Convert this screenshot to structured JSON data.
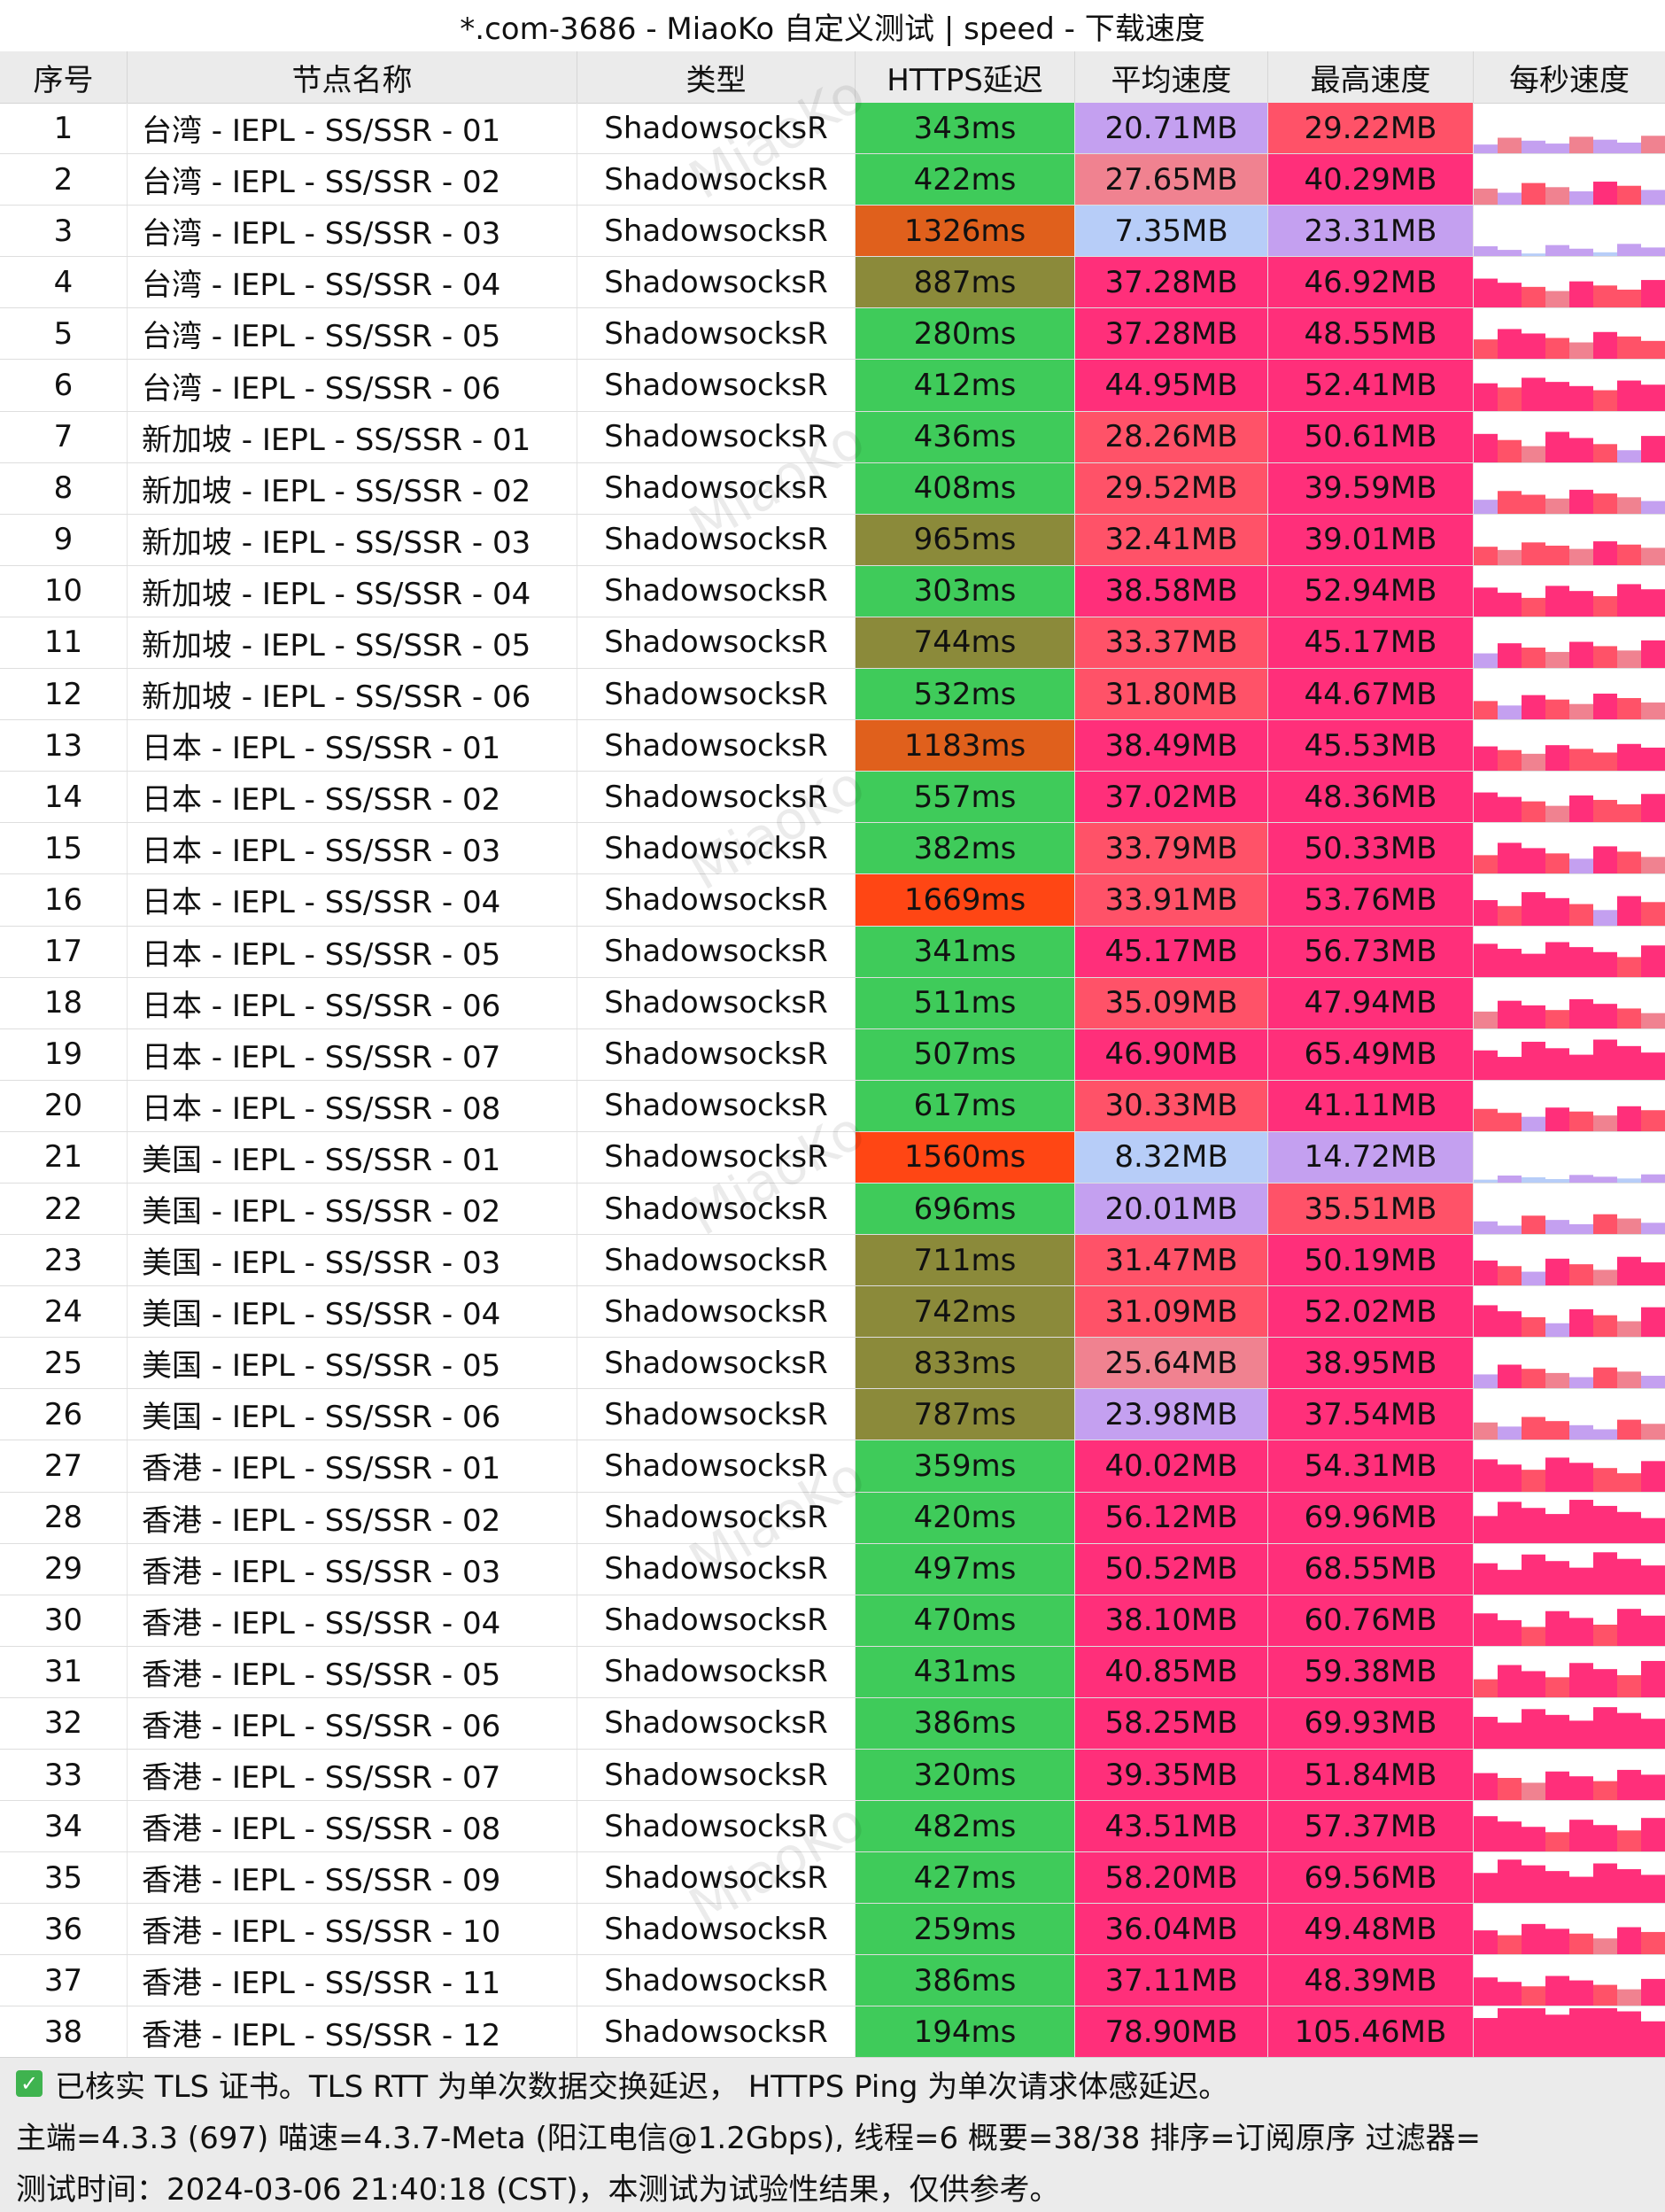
{
  "window": {
    "title": "*.com-3686 - MiaoKo 自定义测试 | speed - 下载速度"
  },
  "watermark": "MiaoKo",
  "columns": [
    "序号",
    "节点名称",
    "类型",
    "HTTPS延迟",
    "平均速度",
    "最高速度",
    "每秒速度"
  ],
  "colors": {
    "latency_green": "#3fcb5a",
    "latency_olive": "#8b8a3a",
    "latency_orange": "#e0601c",
    "latency_red": "#ff4614",
    "speed_hot_pink": "#ff2f7a",
    "speed_red_pink": "#ff5268",
    "speed_pink": "#f08290",
    "speed_lavender": "#c4a0f0",
    "speed_light_blue": "#b7cdf8"
  },
  "rows": [
    {
      "idx": "1",
      "name": "台湾 - IEPL - SS/SSR - 01",
      "type": "ShadowsocksR",
      "latency": "343ms",
      "latency_ms": 343,
      "avg": "20.71MB",
      "avg_mb": 20.71,
      "max": "29.22MB",
      "max_mb": 29.22
    },
    {
      "idx": "2",
      "name": "台湾 - IEPL - SS/SSR - 02",
      "type": "ShadowsocksR",
      "latency": "422ms",
      "latency_ms": 422,
      "avg": "27.65MB",
      "avg_mb": 27.65,
      "max": "40.29MB",
      "max_mb": 40.29
    },
    {
      "idx": "3",
      "name": "台湾 - IEPL - SS/SSR - 03",
      "type": "ShadowsocksR",
      "latency": "1326ms",
      "latency_ms": 1326,
      "avg": "7.35MB",
      "avg_mb": 7.35,
      "max": "23.31MB",
      "max_mb": 23.31
    },
    {
      "idx": "4",
      "name": "台湾 - IEPL - SS/SSR - 04",
      "type": "ShadowsocksR",
      "latency": "887ms",
      "latency_ms": 887,
      "avg": "37.28MB",
      "avg_mb": 37.28,
      "max": "46.92MB",
      "max_mb": 46.92
    },
    {
      "idx": "5",
      "name": "台湾 - IEPL - SS/SSR - 05",
      "type": "ShadowsocksR",
      "latency": "280ms",
      "latency_ms": 280,
      "avg": "37.28MB",
      "avg_mb": 37.28,
      "max": "48.55MB",
      "max_mb": 48.55
    },
    {
      "idx": "6",
      "name": "台湾 - IEPL - SS/SSR - 06",
      "type": "ShadowsocksR",
      "latency": "412ms",
      "latency_ms": 412,
      "avg": "44.95MB",
      "avg_mb": 44.95,
      "max": "52.41MB",
      "max_mb": 52.41
    },
    {
      "idx": "7",
      "name": "新加坡 - IEPL - SS/SSR - 01",
      "type": "ShadowsocksR",
      "latency": "436ms",
      "latency_ms": 436,
      "avg": "28.26MB",
      "avg_mb": 28.26,
      "max": "50.61MB",
      "max_mb": 50.61
    },
    {
      "idx": "8",
      "name": "新加坡 - IEPL - SS/SSR - 02",
      "type": "ShadowsocksR",
      "latency": "408ms",
      "latency_ms": 408,
      "avg": "29.52MB",
      "avg_mb": 29.52,
      "max": "39.59MB",
      "max_mb": 39.59
    },
    {
      "idx": "9",
      "name": "新加坡 - IEPL - SS/SSR - 03",
      "type": "ShadowsocksR",
      "latency": "965ms",
      "latency_ms": 965,
      "avg": "32.41MB",
      "avg_mb": 32.41,
      "max": "39.01MB",
      "max_mb": 39.01
    },
    {
      "idx": "10",
      "name": "新加坡 - IEPL - SS/SSR - 04",
      "type": "ShadowsocksR",
      "latency": "303ms",
      "latency_ms": 303,
      "avg": "38.58MB",
      "avg_mb": 38.58,
      "max": "52.94MB",
      "max_mb": 52.94
    },
    {
      "idx": "11",
      "name": "新加坡 - IEPL - SS/SSR - 05",
      "type": "ShadowsocksR",
      "latency": "744ms",
      "latency_ms": 744,
      "avg": "33.37MB",
      "avg_mb": 33.37,
      "max": "45.17MB",
      "max_mb": 45.17
    },
    {
      "idx": "12",
      "name": "新加坡 - IEPL - SS/SSR - 06",
      "type": "ShadowsocksR",
      "latency": "532ms",
      "latency_ms": 532,
      "avg": "31.80MB",
      "avg_mb": 31.8,
      "max": "44.67MB",
      "max_mb": 44.67
    },
    {
      "idx": "13",
      "name": "日本 - IEPL - SS/SSR - 01",
      "type": "ShadowsocksR",
      "latency": "1183ms",
      "latency_ms": 1183,
      "avg": "38.49MB",
      "avg_mb": 38.49,
      "max": "45.53MB",
      "max_mb": 45.53
    },
    {
      "idx": "14",
      "name": "日本 - IEPL - SS/SSR - 02",
      "type": "ShadowsocksR",
      "latency": "557ms",
      "latency_ms": 557,
      "avg": "37.02MB",
      "avg_mb": 37.02,
      "max": "48.36MB",
      "max_mb": 48.36
    },
    {
      "idx": "15",
      "name": "日本 - IEPL - SS/SSR - 03",
      "type": "ShadowsocksR",
      "latency": "382ms",
      "latency_ms": 382,
      "avg": "33.79MB",
      "avg_mb": 33.79,
      "max": "50.33MB",
      "max_mb": 50.33
    },
    {
      "idx": "16",
      "name": "日本 - IEPL - SS/SSR - 04",
      "type": "ShadowsocksR",
      "latency": "1669ms",
      "latency_ms": 1669,
      "avg": "33.91MB",
      "avg_mb": 33.91,
      "max": "53.76MB",
      "max_mb": 53.76
    },
    {
      "idx": "17",
      "name": "日本 - IEPL - SS/SSR - 05",
      "type": "ShadowsocksR",
      "latency": "341ms",
      "latency_ms": 341,
      "avg": "45.17MB",
      "avg_mb": 45.17,
      "max": "56.73MB",
      "max_mb": 56.73
    },
    {
      "idx": "18",
      "name": "日本 - IEPL - SS/SSR - 06",
      "type": "ShadowsocksR",
      "latency": "511ms",
      "latency_ms": 511,
      "avg": "35.09MB",
      "avg_mb": 35.09,
      "max": "47.94MB",
      "max_mb": 47.94
    },
    {
      "idx": "19",
      "name": "日本 - IEPL - SS/SSR - 07",
      "type": "ShadowsocksR",
      "latency": "507ms",
      "latency_ms": 507,
      "avg": "46.90MB",
      "avg_mb": 46.9,
      "max": "65.49MB",
      "max_mb": 65.49
    },
    {
      "idx": "20",
      "name": "日本 - IEPL - SS/SSR - 08",
      "type": "ShadowsocksR",
      "latency": "617ms",
      "latency_ms": 617,
      "avg": "30.33MB",
      "avg_mb": 30.33,
      "max": "41.11MB",
      "max_mb": 41.11
    },
    {
      "idx": "21",
      "name": "美国 - IEPL - SS/SSR - 01",
      "type": "ShadowsocksR",
      "latency": "1560ms",
      "latency_ms": 1560,
      "avg": "8.32MB",
      "avg_mb": 8.32,
      "max": "14.72MB",
      "max_mb": 14.72
    },
    {
      "idx": "22",
      "name": "美国 - IEPL - SS/SSR - 02",
      "type": "ShadowsocksR",
      "latency": "696ms",
      "latency_ms": 696,
      "avg": "20.01MB",
      "avg_mb": 20.01,
      "max": "35.51MB",
      "max_mb": 35.51
    },
    {
      "idx": "23",
      "name": "美国 - IEPL - SS/SSR - 03",
      "type": "ShadowsocksR",
      "latency": "711ms",
      "latency_ms": 711,
      "avg": "31.47MB",
      "avg_mb": 31.47,
      "max": "50.19MB",
      "max_mb": 50.19
    },
    {
      "idx": "24",
      "name": "美国 - IEPL - SS/SSR - 04",
      "type": "ShadowsocksR",
      "latency": "742ms",
      "latency_ms": 742,
      "avg": "31.09MB",
      "avg_mb": 31.09,
      "max": "52.02MB",
      "max_mb": 52.02
    },
    {
      "idx": "25",
      "name": "美国 - IEPL - SS/SSR - 05",
      "type": "ShadowsocksR",
      "latency": "833ms",
      "latency_ms": 833,
      "avg": "25.64MB",
      "avg_mb": 25.64,
      "max": "38.95MB",
      "max_mb": 38.95
    },
    {
      "idx": "26",
      "name": "美国 - IEPL - SS/SSR - 06",
      "type": "ShadowsocksR",
      "latency": "787ms",
      "latency_ms": 787,
      "avg": "23.98MB",
      "avg_mb": 23.98,
      "max": "37.54MB",
      "max_mb": 37.54
    },
    {
      "idx": "27",
      "name": "香港 - IEPL - SS/SSR - 01",
      "type": "ShadowsocksR",
      "latency": "359ms",
      "latency_ms": 359,
      "avg": "40.02MB",
      "avg_mb": 40.02,
      "max": "54.31MB",
      "max_mb": 54.31
    },
    {
      "idx": "28",
      "name": "香港 - IEPL - SS/SSR - 02",
      "type": "ShadowsocksR",
      "latency": "420ms",
      "latency_ms": 420,
      "avg": "56.12MB",
      "avg_mb": 56.12,
      "max": "69.96MB",
      "max_mb": 69.96
    },
    {
      "idx": "29",
      "name": "香港 - IEPL - SS/SSR - 03",
      "type": "ShadowsocksR",
      "latency": "497ms",
      "latency_ms": 497,
      "avg": "50.52MB",
      "avg_mb": 50.52,
      "max": "68.55MB",
      "max_mb": 68.55
    },
    {
      "idx": "30",
      "name": "香港 - IEPL - SS/SSR - 04",
      "type": "ShadowsocksR",
      "latency": "470ms",
      "latency_ms": 470,
      "avg": "38.10MB",
      "avg_mb": 38.1,
      "max": "60.76MB",
      "max_mb": 60.76
    },
    {
      "idx": "31",
      "name": "香港 - IEPL - SS/SSR - 05",
      "type": "ShadowsocksR",
      "latency": "431ms",
      "latency_ms": 431,
      "avg": "40.85MB",
      "avg_mb": 40.85,
      "max": "59.38MB",
      "max_mb": 59.38
    },
    {
      "idx": "32",
      "name": "香港 - IEPL - SS/SSR - 06",
      "type": "ShadowsocksR",
      "latency": "386ms",
      "latency_ms": 386,
      "avg": "58.25MB",
      "avg_mb": 58.25,
      "max": "69.93MB",
      "max_mb": 69.93
    },
    {
      "idx": "33",
      "name": "香港 - IEPL - SS/SSR - 07",
      "type": "ShadowsocksR",
      "latency": "320ms",
      "latency_ms": 320,
      "avg": "39.35MB",
      "avg_mb": 39.35,
      "max": "51.84MB",
      "max_mb": 51.84
    },
    {
      "idx": "34",
      "name": "香港 - IEPL - SS/SSR - 08",
      "type": "ShadowsocksR",
      "latency": "482ms",
      "latency_ms": 482,
      "avg": "43.51MB",
      "avg_mb": 43.51,
      "max": "57.37MB",
      "max_mb": 57.37
    },
    {
      "idx": "35",
      "name": "香港 - IEPL - SS/SSR - 09",
      "type": "ShadowsocksR",
      "latency": "427ms",
      "latency_ms": 427,
      "avg": "58.20MB",
      "avg_mb": 58.2,
      "max": "69.56MB",
      "max_mb": 69.56
    },
    {
      "idx": "36",
      "name": "香港 - IEPL - SS/SSR - 10",
      "type": "ShadowsocksR",
      "latency": "259ms",
      "latency_ms": 259,
      "avg": "36.04MB",
      "avg_mb": 36.04,
      "max": "49.48MB",
      "max_mb": 49.48
    },
    {
      "idx": "37",
      "name": "香港 - IEPL - SS/SSR - 11",
      "type": "ShadowsocksR",
      "latency": "386ms",
      "latency_ms": 386,
      "avg": "37.11MB",
      "avg_mb": 37.11,
      "max": "48.39MB",
      "max_mb": 48.39
    },
    {
      "idx": "38",
      "name": "香港 - IEPL - SS/SSR - 12",
      "type": "ShadowsocksR",
      "latency": "194ms",
      "latency_ms": 194,
      "avg": "78.90MB",
      "avg_mb": 78.9,
      "max": "105.46MB",
      "max_mb": 105.46
    }
  ],
  "footer": {
    "tls_note": "已核实 TLS 证书。TLS RTT 为单次数据交换延迟， HTTPS Ping 为单次请求体感延迟。",
    "info": "主端=4.3.3 (697) 喵速=4.3.7-Meta (阳江电信@1.2Gbps), 线程=6 概要=38/38 排序=订阅原序 过滤器=",
    "time": "测试时间：2024-03-06 21:40:18 (CST)，本测试为试验性结果，仅供参考。"
  }
}
